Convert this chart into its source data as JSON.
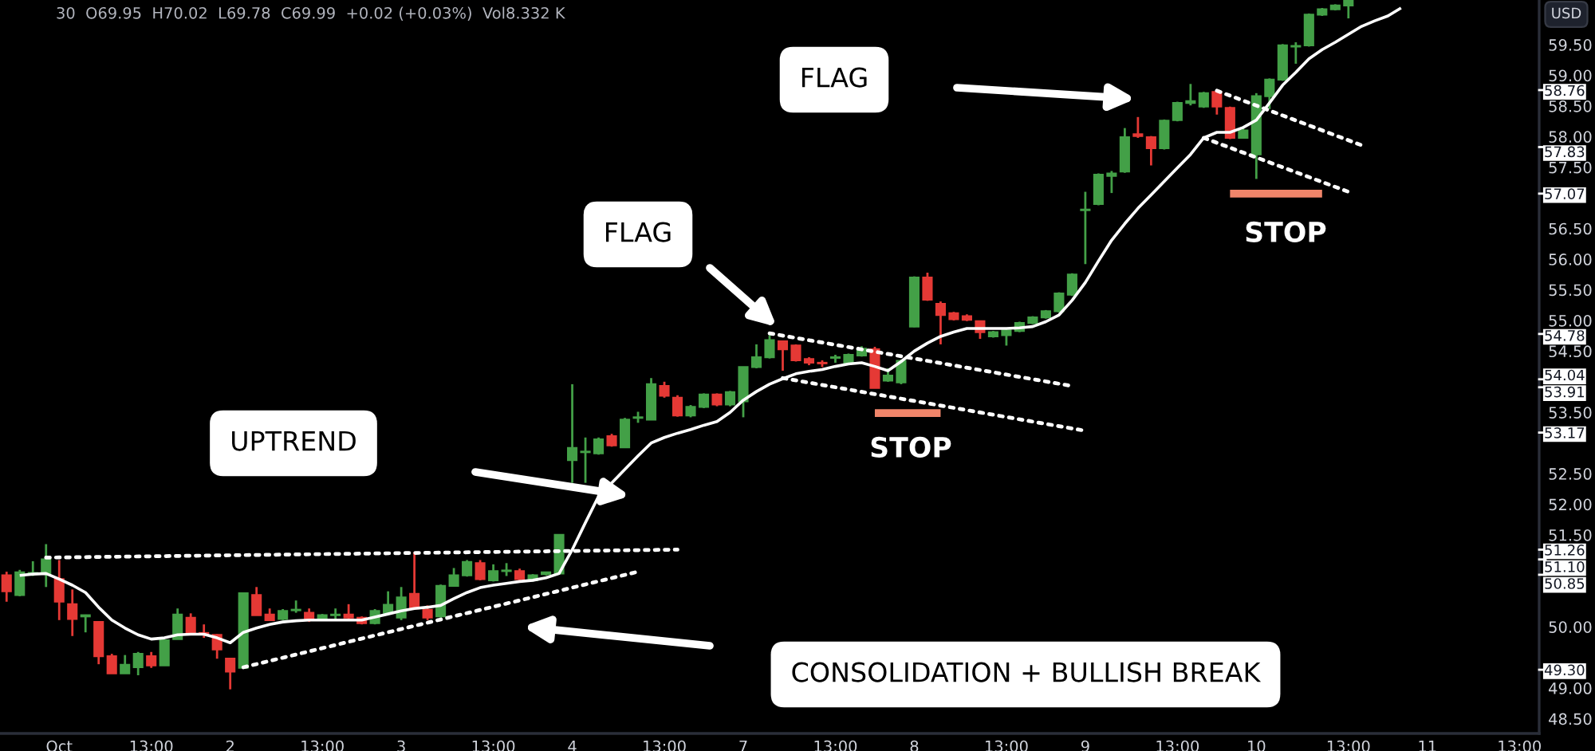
{
  "chart_data": {
    "type": "candlestick",
    "title": "30  O69.95  H70.02  L69.78  C69.99  +0.02 (+0.03%)  Vol8.332 K",
    "ylabel": "USD",
    "categories": [
      null,
      null,
      null,
      null,
      "Oct",
      null,
      null,
      null,
      null,
      null,
      null,
      "13:00",
      null,
      null,
      null,
      null,
      null,
      "2",
      null,
      null,
      null,
      null,
      null,
      null,
      "13:00",
      null,
      null,
      null,
      null,
      null,
      "3",
      null,
      null,
      null,
      null,
      null,
      null,
      "13:00",
      null,
      null,
      null,
      null,
      null,
      "4",
      null,
      null,
      null,
      null,
      null,
      null,
      "13:00",
      null,
      null,
      null,
      null,
      null,
      "7",
      null,
      null,
      null,
      null,
      null,
      null,
      "13:00",
      null,
      null,
      null,
      null,
      null,
      "8",
      null,
      null,
      null,
      null,
      null,
      null,
      "13:00",
      null,
      null,
      null,
      null,
      null,
      "9",
      null,
      null,
      null,
      null,
      null,
      null,
      "13:00",
      null,
      null,
      null,
      null,
      null,
      "10",
      null,
      null,
      null,
      null,
      null,
      null,
      "13:00",
      null,
      null,
      null,
      null,
      null,
      "11",
      null,
      null,
      null,
      null,
      null,
      null,
      "13:00",
      null
    ],
    "ohlc": [
      [
        50.84,
        50.9,
        50.41,
        50.58
      ],
      [
        50.52,
        50.93,
        50.5,
        50.89
      ],
      [
        50.87,
        51.07,
        50.83,
        50.88
      ],
      [
        50.87,
        51.35,
        50.65,
        51.1
      ],
      [
        50.78,
        51.09,
        50.11,
        50.41
      ],
      [
        50.37,
        50.61,
        49.85,
        50.13
      ],
      [
        50.17,
        50.2,
        49.91,
        50.19
      ],
      [
        50.08,
        50.08,
        49.39,
        49.52
      ],
      [
        49.52,
        49.56,
        49.24,
        49.24
      ],
      [
        49.24,
        49.54,
        49.24,
        49.38
      ],
      [
        49.34,
        49.59,
        49.21,
        49.56
      ],
      [
        49.52,
        49.59,
        49.33,
        49.37
      ],
      [
        49.37,
        49.78,
        49.37,
        49.78
      ],
      [
        49.8,
        50.3,
        49.8,
        50.2
      ],
      [
        50.15,
        50.22,
        49.87,
        49.89
      ],
      [
        49.9,
        50.04,
        49.82,
        49.88
      ],
      [
        49.87,
        49.88,
        49.48,
        49.63
      ],
      [
        49.48,
        49.48,
        48.98,
        49.27
      ],
      [
        49.33,
        50.55,
        49.33,
        50.55
      ],
      [
        50.52,
        50.65,
        50.19,
        50.19
      ],
      [
        50.2,
        50.3,
        50.11,
        50.11
      ],
      [
        50.13,
        50.29,
        50.11,
        50.26
      ],
      [
        50.27,
        50.43,
        50.23,
        50.28
      ],
      [
        50.23,
        50.3,
        50.08,
        50.11
      ],
      [
        50.13,
        50.21,
        50.11,
        50.19
      ],
      [
        50.19,
        50.3,
        50.11,
        50.2
      ],
      [
        50.2,
        50.37,
        50.11,
        50.15
      ],
      [
        50.15,
        50.17,
        50.04,
        50.06
      ],
      [
        50.06,
        50.29,
        50.04,
        50.26
      ],
      [
        50.23,
        50.58,
        50.23,
        50.36
      ],
      [
        50.15,
        50.65,
        50.11,
        50.48
      ],
      [
        50.54,
        51.22,
        50.3,
        50.3
      ],
      [
        50.28,
        50.35,
        50.11,
        50.15
      ],
      [
        50.17,
        50.69,
        50.15,
        50.67
      ],
      [
        50.67,
        50.96,
        50.67,
        50.84
      ],
      [
        50.84,
        51.09,
        50.82,
        51.06
      ],
      [
        51.04,
        51.09,
        50.76,
        50.78
      ],
      [
        50.76,
        51.02,
        50.74,
        50.91
      ],
      [
        50.91,
        51.04,
        50.83,
        50.92
      ],
      [
        50.91,
        50.95,
        50.75,
        50.78
      ],
      [
        50.76,
        50.86,
        50.74,
        50.84
      ],
      [
        50.86,
        50.9,
        50.84,
        50.89
      ],
      [
        50.87,
        51.5,
        50.87,
        51.5
      ],
      [
        52.72,
        53.96,
        52.35,
        52.92
      ],
      [
        52.85,
        53.09,
        52.35,
        52.86
      ],
      [
        52.83,
        53.09,
        52.81,
        53.06
      ],
      [
        53.11,
        53.15,
        52.94,
        52.96
      ],
      [
        52.93,
        53.41,
        52.93,
        53.38
      ],
      [
        53.41,
        53.51,
        53.33,
        53.42
      ],
      [
        53.38,
        54.06,
        53.38,
        53.96
      ],
      [
        53.93,
        54.0,
        53.74,
        53.77
      ],
      [
        53.74,
        53.78,
        53.43,
        53.45
      ],
      [
        53.45,
        53.62,
        53.42,
        53.59
      ],
      [
        53.59,
        53.81,
        53.57,
        53.79
      ],
      [
        53.79,
        53.81,
        53.6,
        53.63
      ],
      [
        53.63,
        53.85,
        53.6,
        53.83
      ],
      [
        53.68,
        54.24,
        53.42,
        54.24
      ],
      [
        54.24,
        54.61,
        54.22,
        54.4
      ],
      [
        54.4,
        54.76,
        54.38,
        54.68
      ],
      [
        54.66,
        54.67,
        54.18,
        54.53
      ],
      [
        54.59,
        54.61,
        54.33,
        54.35
      ],
      [
        54.37,
        54.4,
        54.27,
        54.31
      ],
      [
        54.31,
        54.35,
        54.24,
        54.3
      ],
      [
        54.39,
        54.44,
        54.31,
        54.4
      ],
      [
        54.31,
        54.46,
        54.3,
        54.44
      ],
      [
        54.43,
        54.58,
        54.41,
        54.54
      ],
      [
        54.53,
        54.57,
        53.9,
        53.9
      ],
      [
        54.02,
        54.22,
        54.0,
        54.1
      ],
      [
        53.99,
        54.36,
        53.96,
        54.34
      ],
      [
        54.9,
        55.72,
        54.89,
        55.7
      ],
      [
        55.7,
        55.78,
        55.32,
        55.34
      ],
      [
        55.27,
        55.31,
        54.61,
        55.09
      ],
      [
        55.12,
        55.14,
        55.0,
        55.02
      ],
      [
        55.07,
        55.1,
        54.99,
        55.01
      ],
      [
        54.99,
        55.0,
        54.7,
        54.81
      ],
      [
        54.74,
        54.83,
        54.72,
        54.81
      ],
      [
        54.76,
        54.87,
        54.59,
        54.84
      ],
      [
        54.83,
        54.98,
        54.81,
        54.96
      ],
      [
        54.96,
        55.07,
        54.94,
        55.05
      ],
      [
        55.05,
        55.17,
        55.03,
        55.15
      ],
      [
        55.15,
        55.46,
        55.13,
        55.44
      ],
      [
        55.42,
        55.77,
        55.4,
        55.75
      ],
      [
        56.8,
        57.1,
        55.92,
        56.81
      ],
      [
        56.9,
        57.4,
        56.88,
        57.38
      ],
      [
        57.36,
        57.44,
        57.08,
        57.4
      ],
      [
        57.43,
        58.14,
        57.41,
        57.99
      ],
      [
        58.04,
        58.32,
        57.98,
        58.01
      ],
      [
        57.99,
        58.01,
        57.53,
        57.81
      ],
      [
        57.81,
        58.28,
        57.79,
        58.26
      ],
      [
        58.27,
        58.57,
        58.25,
        58.55
      ],
      [
        58.55,
        58.86,
        58.51,
        58.58
      ],
      [
        58.49,
        58.73,
        58.47,
        58.71
      ],
      [
        58.73,
        58.77,
        58.36,
        58.49
      ],
      [
        58.47,
        58.49,
        57.96,
        57.98
      ],
      [
        57.98,
        58.14,
        57.97,
        58.1
      ],
      [
        57.71,
        58.71,
        57.31,
        58.66
      ],
      [
        58.66,
        58.95,
        58.45,
        58.93
      ],
      [
        58.93,
        59.51,
        58.91,
        59.49
      ],
      [
        59.47,
        59.54,
        59.19,
        59.48
      ],
      [
        59.49,
        60.01,
        59.47,
        59.99
      ],
      [
        59.99,
        60.1,
        59.97,
        60.08
      ],
      [
        60.08,
        60.16,
        60.06,
        60.14
      ],
      [
        60.14,
        60.22,
        59.93,
        60.22
      ],
      null,
      null,
      null,
      null,
      null,
      null,
      null,
      null,
      null,
      null,
      null,
      null,
      null,
      null
    ],
    "colors": [
      "#e53935",
      "#43a047",
      "#43a047",
      "#43a047",
      "#e53935",
      "#e53935",
      "#43a047",
      "#e53935",
      "#e53935",
      "#43a047",
      "#43a047",
      "#e53935",
      "#43a047",
      "#43a047",
      "#e53935",
      "#e53935",
      "#e53935",
      "#e53935",
      "#43a047",
      "#e53935",
      "#e53935",
      "#43a047",
      "#43a047",
      "#e53935",
      "#43a047",
      "#43a047",
      "#e53935",
      "#e53935",
      "#43a047",
      "#43a047",
      "#43a047",
      "#e53935",
      "#e53935",
      "#43a047",
      "#43a047",
      "#43a047",
      "#e53935",
      "#43a047",
      "#43a047",
      "#e53935",
      "#43a047",
      "#43a047",
      "#43a047",
      "#43a047",
      "#43a047",
      "#43a047",
      "#e53935",
      "#43a047",
      "#43a047",
      "#43a047",
      "#e53935",
      "#e53935",
      "#43a047",
      "#43a047",
      "#e53935",
      "#43a047",
      "#43a047",
      "#43a047",
      "#43a047",
      "#e53935",
      "#e53935",
      "#e53935",
      "#e53935",
      "#43a047",
      "#43a047",
      "#43a047",
      "#e53935",
      "#43a047",
      "#43a047",
      "#43a047",
      "#e53935",
      "#e53935",
      "#e53935",
      "#e53935",
      "#e53935",
      "#43a047",
      "#43a047",
      "#43a047",
      "#43a047",
      "#43a047",
      "#43a047",
      "#43a047",
      "#43a047",
      "#43a047",
      "#43a047",
      "#43a047",
      "#e53935",
      "#e53935",
      "#43a047",
      "#43a047",
      "#43a047",
      "#43a047",
      "#e53935",
      "#e53935",
      "#43a047",
      "#43a047",
      "#43a047",
      "#43a047",
      "#43a047",
      "#43a047",
      "#43a047",
      "#43a047",
      "#43a047",
      null,
      null,
      null,
      null,
      null,
      null,
      null,
      null,
      null,
      null,
      null,
      null,
      null,
      null
    ],
    "series": [
      {
        "type": "line",
        "color": "#ffffff",
        "line_style": "solid",
        "values": [
          null,
          50.84,
          50.86,
          50.87,
          50.78,
          50.68,
          50.56,
          50.32,
          50.11,
          49.98,
          49.87,
          49.8,
          49.82,
          49.87,
          49.88,
          49.88,
          49.82,
          49.74,
          49.91,
          49.98,
          50.04,
          50.08,
          50.1,
          50.11,
          50.11,
          50.11,
          50.11,
          50.11,
          50.16,
          50.21,
          50.26,
          50.3,
          50.32,
          50.35,
          50.46,
          50.56,
          50.64,
          50.68,
          50.71,
          50.74,
          50.76,
          50.8,
          50.87,
          51.26,
          51.7,
          52.13,
          52.35,
          52.57,
          52.79,
          53.0,
          53.09,
          53.16,
          53.22,
          53.29,
          53.35,
          53.5,
          53.7,
          53.84,
          53.96,
          54.05,
          54.13,
          54.17,
          54.2,
          54.25,
          54.29,
          54.31,
          54.25,
          54.18,
          54.33,
          54.5,
          54.63,
          54.74,
          54.81,
          54.87,
          54.87,
          54.87,
          54.87,
          54.88,
          54.9,
          54.98,
          55.09,
          55.33,
          55.62,
          55.97,
          56.31,
          56.58,
          56.83,
          57.05,
          57.27,
          57.49,
          57.71,
          57.98,
          58.07,
          58.07,
          58.15,
          58.27,
          58.55,
          58.84,
          59.05,
          59.27,
          59.42,
          59.54,
          59.67,
          59.8,
          59.89,
          59.97,
          60.1,
          null,
          null,
          null,
          null,
          null,
          null,
          null,
          null,
          null,
          null
        ]
      },
      {
        "type": "line",
        "color": "#ffffff",
        "line_style": "dotted",
        "values": [
          null,
          null,
          null,
          51.13,
          null,
          null,
          null,
          null,
          null,
          null,
          null,
          null,
          null,
          null,
          null,
          null,
          null,
          null,
          null,
          null,
          null,
          null,
          null,
          null,
          null,
          null,
          null,
          null,
          null,
          null,
          null,
          null,
          null,
          null,
          null,
          null,
          null,
          null,
          null,
          null,
          null,
          null,
          null,
          null,
          null,
          null,
          null,
          null,
          null,
          null,
          null,
          51.26,
          null,
          null,
          null,
          null,
          null,
          null,
          null,
          null,
          null,
          null,
          null,
          null,
          null,
          null,
          null,
          null,
          null,
          null,
          null,
          null,
          null,
          null,
          null,
          null,
          null,
          null,
          null,
          null,
          null,
          null,
          null,
          null,
          null,
          null,
          null,
          null,
          null,
          null,
          null,
          null,
          null,
          null,
          null,
          null,
          null,
          null,
          null,
          null,
          null,
          null,
          null,
          null,
          null,
          null,
          null,
          null,
          null,
          null,
          null,
          null,
          null,
          null,
          null,
          null,
          null
        ]
      },
      {
        "type": "line",
        "color": "#ffffff",
        "line_style": "dotted",
        "values": [
          null,
          null,
          null,
          null,
          null,
          null,
          null,
          null,
          null,
          null,
          null,
          null,
          null,
          null,
          null,
          null,
          null,
          null,
          49.34,
          null,
          null,
          null,
          null,
          null,
          null,
          null,
          null,
          null,
          null,
          null,
          null,
          null,
          null,
          null,
          null,
          null,
          null,
          null,
          null,
          null,
          null,
          null,
          null,
          null,
          null,
          null,
          null,
          null,
          50.9,
          null,
          null,
          null,
          null,
          null,
          null,
          null,
          null,
          null,
          null,
          null,
          null,
          null,
          null,
          null,
          null,
          null,
          null,
          null,
          null,
          null,
          null,
          null,
          null,
          null,
          null,
          null,
          null,
          null,
          null,
          null,
          null,
          null,
          null,
          null,
          null,
          null,
          null,
          null,
          null,
          null,
          null,
          null,
          null,
          null,
          null,
          null,
          null,
          null,
          null,
          null,
          null,
          null,
          null,
          null,
          null,
          null,
          null,
          null,
          null,
          null,
          null,
          null,
          null,
          null,
          null,
          null,
          null
        ]
      },
      {
        "type": "line",
        "color": "#ffffff",
        "line_style": "dotted",
        "values": [
          null,
          null,
          null,
          null,
          null,
          null,
          null,
          null,
          null,
          null,
          null,
          null,
          null,
          null,
          null,
          null,
          null,
          null,
          null,
          null,
          null,
          null,
          null,
          null,
          null,
          null,
          null,
          null,
          null,
          null,
          null,
          null,
          null,
          null,
          null,
          null,
          null,
          null,
          null,
          null,
          null,
          null,
          null,
          null,
          null,
          null,
          null,
          null,
          null,
          null,
          null,
          null,
          null,
          null,
          null,
          null,
          null,
          null,
          54.79,
          null,
          null,
          null,
          null,
          null,
          null,
          null,
          null,
          null,
          null,
          null,
          null,
          null,
          null,
          null,
          null,
          null,
          null,
          null,
          null,
          null,
          null,
          53.93,
          null,
          null,
          null,
          null,
          null,
          null,
          null,
          null,
          null,
          null,
          null,
          null,
          null,
          null,
          null,
          null,
          null,
          null,
          null,
          null,
          null,
          null,
          null,
          null,
          null,
          null,
          null,
          null,
          null,
          null,
          null,
          null,
          null,
          null,
          null
        ]
      },
      {
        "type": "line",
        "color": "#ffffff",
        "line_style": "dotted",
        "values": [
          null,
          null,
          null,
          null,
          null,
          null,
          null,
          null,
          null,
          null,
          null,
          null,
          null,
          null,
          null,
          null,
          null,
          null,
          null,
          null,
          null,
          null,
          null,
          null,
          null,
          null,
          null,
          null,
          null,
          null,
          null,
          null,
          null,
          null,
          null,
          null,
          null,
          null,
          null,
          null,
          null,
          null,
          null,
          null,
          null,
          null,
          null,
          null,
          null,
          null,
          null,
          null,
          null,
          null,
          null,
          null,
          null,
          null,
          null,
          54.06,
          null,
          null,
          null,
          null,
          null,
          null,
          null,
          null,
          null,
          null,
          null,
          null,
          null,
          null,
          null,
          null,
          null,
          null,
          null,
          null,
          null,
          null,
          53.2,
          null,
          null,
          null,
          null,
          null,
          null,
          null,
          null,
          null,
          null,
          null,
          null,
          null,
          null,
          null,
          null,
          null,
          null,
          null,
          null,
          null,
          null,
          null,
          null,
          null,
          null,
          null,
          null,
          null,
          null,
          null,
          null,
          null,
          null
        ]
      },
      {
        "type": "line",
        "color": "#ffffff",
        "line_style": "dotted",
        "values": [
          null,
          null,
          null,
          null,
          null,
          null,
          null,
          null,
          null,
          null,
          null,
          null,
          null,
          null,
          null,
          null,
          null,
          null,
          null,
          null,
          null,
          null,
          null,
          null,
          null,
          null,
          null,
          null,
          null,
          null,
          null,
          null,
          null,
          null,
          null,
          null,
          null,
          null,
          null,
          null,
          null,
          null,
          null,
          null,
          null,
          null,
          null,
          null,
          null,
          null,
          null,
          null,
          null,
          null,
          null,
          null,
          null,
          null,
          null,
          null,
          null,
          null,
          null,
          null,
          null,
          null,
          null,
          null,
          null,
          null,
          null,
          null,
          null,
          null,
          null,
          null,
          null,
          null,
          null,
          null,
          null,
          null,
          null,
          null,
          null,
          null,
          null,
          null,
          null,
          null,
          null,
          null,
          58.75,
          null,
          null,
          null,
          null,
          null,
          null,
          null,
          null,
          null,
          null,
          57.86,
          null,
          null,
          null,
          null,
          null,
          null,
          null,
          null,
          null,
          null,
          null,
          null,
          null
        ]
      },
      {
        "type": "line",
        "color": "#ffffff",
        "line_style": "dotted",
        "values": [
          null,
          null,
          null,
          null,
          null,
          null,
          null,
          null,
          null,
          null,
          null,
          null,
          null,
          null,
          null,
          null,
          null,
          null,
          null,
          null,
          null,
          null,
          null,
          null,
          null,
          null,
          null,
          null,
          null,
          null,
          null,
          null,
          null,
          null,
          null,
          null,
          null,
          null,
          null,
          null,
          null,
          null,
          null,
          null,
          null,
          null,
          null,
          null,
          null,
          null,
          null,
          null,
          null,
          null,
          null,
          null,
          null,
          null,
          null,
          null,
          null,
          null,
          null,
          null,
          null,
          null,
          null,
          null,
          null,
          null,
          null,
          null,
          null,
          null,
          null,
          null,
          null,
          null,
          null,
          null,
          null,
          null,
          null,
          null,
          null,
          null,
          null,
          null,
          null,
          null,
          null,
          57.98,
          null,
          null,
          null,
          null,
          null,
          null,
          null,
          null,
          null,
          null,
          57.1,
          null,
          null,
          null,
          null,
          null,
          null,
          null,
          null,
          null,
          null,
          null,
          null,
          null,
          null
        ]
      },
      {
        "type": "line",
        "color": "#f0856a",
        "line_style": "solid",
        "values": [
          null,
          null,
          null,
          null,
          null,
          null,
          null,
          null,
          null,
          null,
          null,
          null,
          null,
          null,
          null,
          null,
          null,
          null,
          null,
          null,
          null,
          null,
          null,
          null,
          null,
          null,
          null,
          null,
          null,
          null,
          null,
          null,
          null,
          null,
          null,
          null,
          null,
          null,
          null,
          null,
          null,
          null,
          null,
          null,
          null,
          null,
          null,
          null,
          null,
          null,
          null,
          null,
          null,
          null,
          null,
          null,
          null,
          null,
          null,
          null,
          null,
          null,
          null,
          null,
          null,
          null,
          53.49,
          null,
          null,
          null,
          null,
          53.49,
          null,
          null,
          null,
          null,
          null,
          null,
          null,
          null,
          null,
          null,
          null,
          null,
          null,
          null,
          null,
          null,
          null,
          null,
          null,
          null,
          null,
          null,
          null,
          null,
          null,
          null,
          null,
          null,
          null,
          null,
          null,
          null,
          null,
          null,
          null,
          null,
          null,
          null,
          null,
          null,
          null,
          null,
          null,
          null,
          null
        ]
      },
      {
        "type": "line",
        "color": "#f0856a",
        "line_style": "solid",
        "values": [
          null,
          null,
          null,
          null,
          null,
          null,
          null,
          null,
          null,
          null,
          null,
          null,
          null,
          null,
          null,
          null,
          null,
          null,
          null,
          null,
          null,
          null,
          null,
          null,
          null,
          null,
          null,
          null,
          null,
          null,
          null,
          null,
          null,
          null,
          null,
          null,
          null,
          null,
          null,
          null,
          null,
          null,
          null,
          null,
          null,
          null,
          null,
          null,
          null,
          null,
          null,
          null,
          null,
          null,
          null,
          null,
          null,
          null,
          null,
          null,
          null,
          null,
          null,
          null,
          null,
          null,
          null,
          null,
          null,
          null,
          null,
          null,
          null,
          null,
          null,
          null,
          null,
          null,
          null,
          null,
          null,
          null,
          null,
          null,
          null,
          null,
          null,
          null,
          null,
          null,
          null,
          null,
          null,
          57.07,
          null,
          null,
          null,
          null,
          null,
          null,
          57.07,
          null,
          null,
          null,
          null,
          null,
          null,
          null,
          null,
          null,
          null,
          null,
          null,
          null,
          null,
          null,
          null
        ]
      }
    ],
    "ylim": [
      48.26,
      60.23
    ],
    "yticks": [
      {
        "value": 59.5,
        "label": "59.50"
      },
      {
        "value": 59,
        "label": "59.00"
      },
      {
        "value": 58.5,
        "label": "58.50"
      },
      {
        "value": 58,
        "label": "58.00"
      },
      {
        "value": 57.5,
        "label": "57.50"
      },
      {
        "value": 56.5,
        "label": "56.50"
      },
      {
        "value": 56,
        "label": "56.00"
      },
      {
        "value": 55.5,
        "label": "55.50"
      },
      {
        "value": 55,
        "label": "55.00"
      },
      {
        "value": 54.5,
        "label": "54.50"
      },
      {
        "value": 53.5,
        "label": "53.50"
      },
      {
        "value": 52.5,
        "label": "52.50"
      },
      {
        "value": 52,
        "label": "52.00"
      },
      {
        "value": 51.5,
        "label": "51.50"
      },
      {
        "value": 50,
        "label": "50.00"
      },
      {
        "value": 49,
        "label": "49.00"
      },
      {
        "value": 48.5,
        "label": "48.50"
      }
    ],
    "ref_lines": [
      {
        "axis": "y",
        "value": 58.76,
        "label": "58.76",
        "color": "#ffffff"
      },
      {
        "axis": "y",
        "value": 57.83,
        "label": "57.83",
        "color": "#ffffff"
      },
      {
        "axis": "y",
        "value": 57.07,
        "label": "57.07",
        "color": "#ffffff"
      },
      {
        "axis": "y",
        "value": 54.78,
        "label": "54.78",
        "color": "#ffffff"
      },
      {
        "axis": "y",
        "value": 54.04,
        "label": "54.04",
        "color": "#ffffff"
      },
      {
        "axis": "y",
        "value": 53.91,
        "label": "53.91",
        "color": "#ffffff"
      },
      {
        "axis": "y",
        "value": 53.17,
        "label": "53.17",
        "color": "#ffffff"
      },
      {
        "axis": "y",
        "value": 51.26,
        "label": "51.26",
        "color": "#ffffff"
      },
      {
        "axis": "y",
        "value": 51.1,
        "label": "51.10",
        "color": "#ffffff"
      },
      {
        "axis": "y",
        "value": 50.85,
        "label": "50.85",
        "color": "#ffffff"
      },
      {
        "axis": "y",
        "value": 49.3,
        "label": "49.30",
        "color": "#ffffff"
      }
    ],
    "annotations": [
      "FLAG",
      "FLAG",
      "UPTREND",
      "STOP",
      "STOP",
      "CONSOLIDATION + BULLISH BREAK"
    ]
  }
}
